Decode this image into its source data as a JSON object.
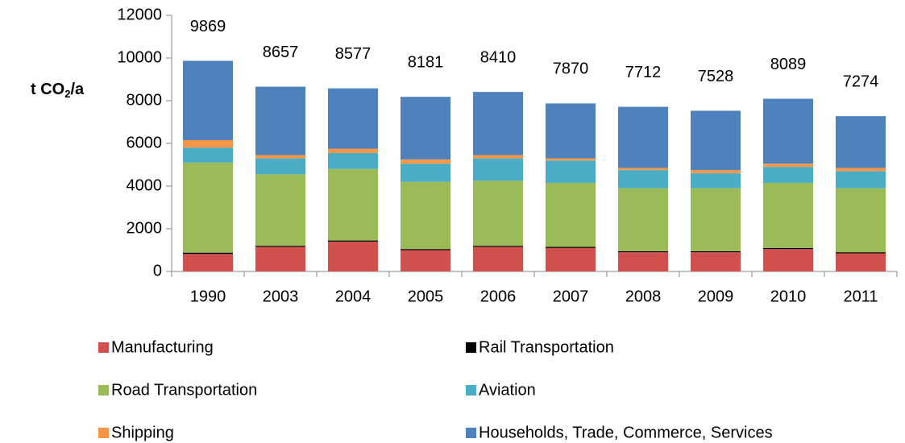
{
  "chart_data": {
    "type": "stacked_bar",
    "y_label": [
      "t CO",
      "2",
      "/a"
    ],
    "categories": [
      "1990",
      "2003",
      "2004",
      "2005",
      "2006",
      "2007",
      "2008",
      "2009",
      "2010",
      "2011"
    ],
    "totals": [
      9869,
      8657,
      8577,
      8181,
      8410,
      7870,
      7712,
      7528,
      8089,
      7274
    ],
    "series": [
      {
        "name": "Manufacturing",
        "color": "#d0504d",
        "values": [
          820,
          1150,
          1400,
          1000,
          1150,
          1100,
          900,
          900,
          1050,
          850
        ]
      },
      {
        "name": "Rail Transportation",
        "color": "#000000",
        "values": [
          60,
          50,
          50,
          50,
          50,
          50,
          50,
          50,
          50,
          50
        ]
      },
      {
        "name": "Road Transportation",
        "color": "#9bbb59",
        "values": [
          4220,
          3350,
          3350,
          3150,
          3050,
          3000,
          2950,
          2950,
          3050,
          3000
        ]
      },
      {
        "name": "Aviation",
        "color": "#4bacc6",
        "values": [
          700,
          750,
          750,
          850,
          1050,
          1050,
          850,
          700,
          750,
          800
        ]
      },
      {
        "name": "Shipping",
        "color": "#f79646",
        "values": [
          350,
          150,
          200,
          200,
          150,
          100,
          100,
          150,
          150,
          150
        ]
      },
      {
        "name": "Households, Trade, Commerce, Services",
        "color": "#4f81bd",
        "values": [
          3719,
          3207,
          2827,
          2931,
          2960,
          2570,
          2862,
          2778,
          3039,
          2424
        ]
      }
    ],
    "ylim": [
      0,
      12000
    ],
    "yticks": [
      0,
      2000,
      4000,
      6000,
      8000,
      10000,
      12000
    ]
  }
}
